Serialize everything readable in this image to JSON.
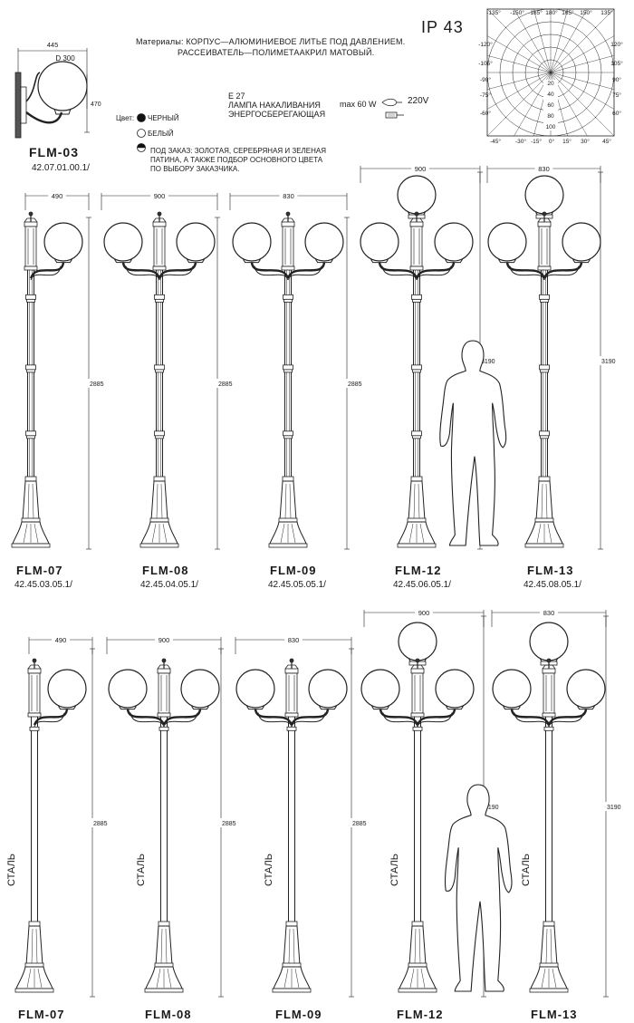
{
  "header": {
    "materials": "Материалы: КОРПУС—АЛЮМИНИЕВОЕ ЛИТЬЕ ПОД ДАВЛЕНИЕМ.",
    "materials2": "РАССЕИВАТЕЛЬ—ПОЛИМЕТААКРИЛ МАТОВЫЙ.",
    "ip": "IP 43",
    "lamp_socket": "E 27",
    "lamp_type1": "ЛАМПА НАКАЛИВАНИЯ",
    "lamp_type2": "ЭНЕРГОСБЕРЕГАЮЩАЯ",
    "power": "max 60 W",
    "voltage": "220V"
  },
  "colors": {
    "label": "Цвет:",
    "black": "ЧЕРНЫЙ",
    "white": "БЕЛЫЙ",
    "order1": "ПОД ЗАКАЗ: ЗОЛОТАЯ, СЕРЕБРЯНАЯ И ЗЕЛЕНАЯ",
    "order2": "ПАТИНА, А ТАКЖЕ ПОДБОР ОСНОВНОГО ЦВЕТА",
    "order3": "ПО ВЫБОРУ ЗАКАЗЧИКА."
  },
  "wall_light": {
    "model": "FLM-03",
    "code": "42.07.01.00.1/",
    "width": "445",
    "diameter": "D 300",
    "height": "470"
  },
  "polar": {
    "top_labels": [
      "-135°",
      "-150°",
      "-165°",
      "180°",
      "165°",
      "150°",
      "135°"
    ],
    "left_labels": [
      "-120°",
      "-105°",
      "-90°",
      "-75°",
      "-60°"
    ],
    "right_labels": [
      "120°",
      "105°",
      "90°",
      "75°",
      "60°"
    ],
    "bottom_labels": [
      "-45°",
      "-30°",
      "-15°",
      "0°",
      "15°",
      "30°",
      "45°"
    ],
    "rings": [
      "20",
      "40",
      "60",
      "80",
      "100"
    ]
  },
  "row_top": [
    {
      "model": "FLM-07",
      "code": "42.45.03.05.1/",
      "width": "490",
      "height": "2885"
    },
    {
      "model": "FLM-08",
      "code": "42.45.04.05.1/",
      "width": "900",
      "height": "2885"
    },
    {
      "model": "FLM-09",
      "code": "42.45.05.05.1/",
      "width": "830",
      "height": "2885"
    },
    {
      "model": "FLM-12",
      "code": "42.45.06.05.1/",
      "width": "900",
      "height": "3190"
    },
    {
      "model": "FLM-13",
      "code": "42.45.08.05.1/",
      "width": "830",
      "height": "3190"
    }
  ],
  "row_bottom": [
    {
      "model": "FLM-07",
      "width": "490",
      "height": "2885",
      "material": "СТАЛЬ"
    },
    {
      "model": "FLM-08",
      "width": "900",
      "height": "2885",
      "material": "СТАЛЬ"
    },
    {
      "model": "FLM-09",
      "width": "830",
      "height": "2885",
      "material": "СТАЛЬ"
    },
    {
      "model": "FLM-12",
      "width": "900",
      "height": "3190",
      "material": "СТАЛЬ"
    },
    {
      "model": "FLM-13",
      "width": "830",
      "height": "3190",
      "material": "СТАЛЬ"
    }
  ]
}
